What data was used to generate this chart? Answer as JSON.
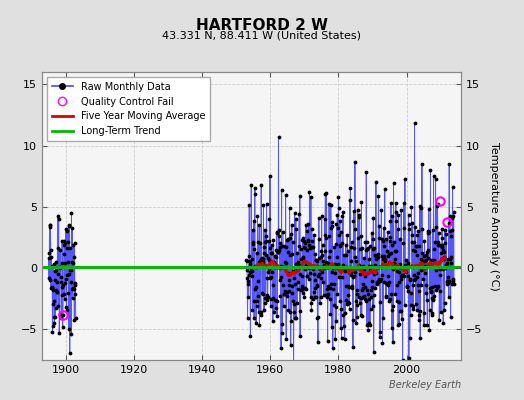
{
  "title": "HARTFORD 2 W",
  "subtitle": "43.331 N, 88.411 W (United States)",
  "ylabel": "Temperature Anomaly (°C)",
  "credit": "Berkeley Earth",
  "xlim": [
    1893,
    2016
  ],
  "ylim": [
    -7.5,
    16
  ],
  "yticks": [
    -5,
    0,
    5,
    10,
    15
  ],
  "xticks": [
    1900,
    1920,
    1940,
    1960,
    1980,
    2000
  ],
  "bg_color": "#e0e0e0",
  "plot_bg_color": "#f5f5f5",
  "raw_line_color": "#4444ff",
  "raw_dot_color": "#000000",
  "ma_color": "#dd0000",
  "trend_color": "#00bb00",
  "qc_color": "#ff00ff",
  "trend_value": 0.1,
  "seed": 42,
  "early_year_start": 1895,
  "early_year_end": 1902,
  "main_year_start": 1953,
  "main_year_end": 2013,
  "noise_early": 2.5,
  "noise_main": 2.8,
  "ma_window": 60,
  "qc_fail_points": [
    [
      1899.25,
      -3.8
    ],
    [
      2009.75,
      5.5
    ],
    [
      2011.75,
      3.8
    ]
  ],
  "figsize": [
    5.24,
    4.0
  ],
  "dpi": 100,
  "title_fontsize": 11,
  "subtitle_fontsize": 8,
  "tick_fontsize": 8,
  "ylabel_fontsize": 8,
  "legend_fontsize": 7,
  "credit_fontsize": 7
}
